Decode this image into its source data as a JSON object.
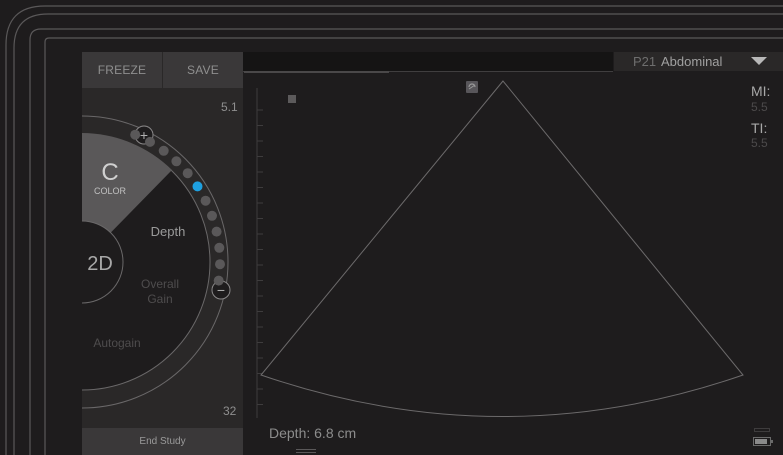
{
  "panel": {
    "freeze_label": "FREEZE",
    "save_label": "SAVE",
    "end_study_label": "End Study",
    "depth_scale_max": "5.1",
    "depth_scale_min": "32"
  },
  "wheel": {
    "mode_color_letter": "C",
    "mode_color_label": "COLOR",
    "mode_2d_label": "2D",
    "depth_label": "Depth",
    "overall_gain_line1": "Overall",
    "overall_gain_line2": "Gain",
    "autogain_label": "Autogain",
    "plus_symbol": "+",
    "minus_symbol": "−",
    "depth_level_selected": 5,
    "depth_level_count": 12,
    "active_color": "#1ea0e0"
  },
  "topbar": {
    "preset_code": "P21",
    "preset_name": "Abdominal"
  },
  "indices": {
    "mi_label": "MI:",
    "mi_value": "5.5",
    "ti_label": "TI:",
    "ti_value": "5.5"
  },
  "status": {
    "depth_readout": "Depth: 6.8 cm",
    "battery_level": 0.85
  },
  "icons": {
    "battery": "battery-icon",
    "orientation": "orientation-marker-icon",
    "preset_dropdown": "chevron-down-icon"
  }
}
